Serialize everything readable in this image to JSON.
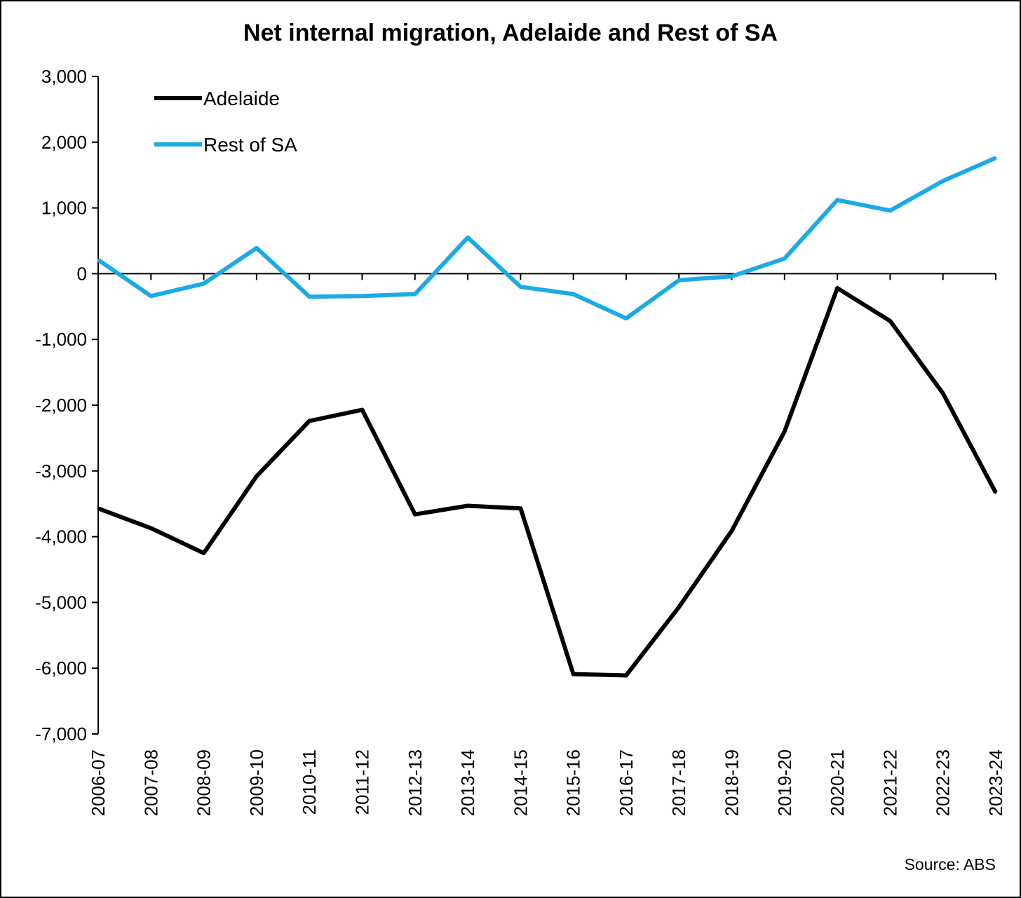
{
  "chart_data": {
    "type": "line",
    "title": "Net internal migration, Adelaide and Rest of SA",
    "xlabel": "",
    "ylabel": "",
    "categories": [
      "2006-07",
      "2007-08",
      "2008-09",
      "2009-10",
      "2010-11",
      "2011-12",
      "2012-13",
      "2013-14",
      "2014-15",
      "2015-16",
      "2016-17",
      "2017-18",
      "2018-19",
      "2019-20",
      "2020-21",
      "2021-22",
      "2022-23",
      "2023-24"
    ],
    "ylim": [
      -7000,
      3000
    ],
    "yticks": [
      3000,
      2000,
      1000,
      0,
      -1000,
      -2000,
      -3000,
      -4000,
      -5000,
      -6000,
      -7000
    ],
    "ytick_labels": [
      "3,000",
      "2,000",
      "1,000",
      "0",
      "-1,000",
      "-2,000",
      "-3,000",
      "-4,000",
      "-5,000",
      "-6,000",
      "-7,000"
    ],
    "grid": false,
    "legend_position": "top-left",
    "series": [
      {
        "name": "Adelaide",
        "color": "#000000",
        "values": [
          -3570,
          -3870,
          -4250,
          -3080,
          -2240,
          -2070,
          -3660,
          -3530,
          -3570,
          -6090,
          -6110,
          -5070,
          -3910,
          -2400,
          -220,
          -720,
          -1820,
          -3330
        ]
      },
      {
        "name": "Rest of SA",
        "color": "#1BAAE6",
        "values": [
          210,
          -340,
          -150,
          390,
          -350,
          -340,
          -310,
          550,
          -200,
          -310,
          -680,
          -100,
          -40,
          230,
          1120,
          960,
          1410,
          1760
        ]
      }
    ]
  },
  "source": "Source: ABS"
}
